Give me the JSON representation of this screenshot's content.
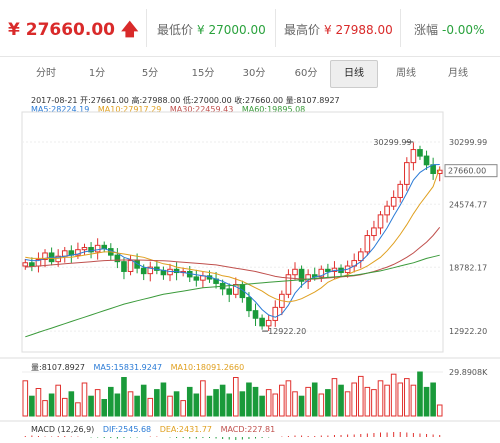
{
  "header": {
    "price": "¥ 27660.00",
    "low_label": "最低价",
    "low_value": "¥ 27000.00",
    "high_label": "最高价",
    "high_value": "¥ 27988.00",
    "change_label": "涨幅",
    "change_value": "-0.00%"
  },
  "tabs": [
    "分时",
    "1分",
    "5分",
    "15分",
    "30分",
    "60分",
    "日线",
    "周线",
    "月线"
  ],
  "active_tab": 6,
  "info": {
    "line1": "2017-08-21  开:27661.00  高:27988.00  低:27000.00  收:27660.00  量:8107.8927",
    "ma5": "MA5:28224.19",
    "ma10": "MA10:27917.29",
    "ma30": "MA30:22459.43",
    "ma60": "MA60:19895.08"
  },
  "volume_info": {
    "vol": "量:8107.8927",
    "ma5": "MA5:15831.9247",
    "ma10": "MA10:18091.2660"
  },
  "macd_info": {
    "title": "MACD (12,26,9)",
    "dif": "DIF:2545.68",
    "dea": "DEA:2431.77",
    "macd": "MACD:227.81"
  },
  "chart_data": {
    "type": "candlestick",
    "y_ticks": [
      30299.99,
      24574.77,
      18782.17,
      12922.2
    ],
    "current_label": 27660.0,
    "ylim": [
      11000,
      32500
    ],
    "annotations": [
      {
        "label": "30299.99",
        "value": 30299.99
      },
      {
        "label": "12922.20",
        "value": 12922.2
      }
    ],
    "closes": [
      19200,
      18900,
      19500,
      20100,
      19300,
      19800,
      20300,
      19900,
      20400,
      20600,
      20200,
      20800,
      20500,
      19900,
      19300,
      18400,
      19400,
      18700,
      18200,
      18800,
      18500,
      18100,
      18600,
      18300,
      18400,
      17900,
      17600,
      18000,
      17700,
      17300,
      16800,
      16300,
      17200,
      16000,
      14800,
      14100,
      13400,
      13900,
      15100,
      16300,
      18100,
      18600,
      17500,
      18100,
      17900,
      18600,
      18400,
      18700,
      18300,
      18900,
      19400,
      20200,
      21700,
      22400,
      23600,
      24400,
      25200,
      26400,
      28400,
      29600,
      29000,
      28200,
      27400,
      27700
    ],
    "ma5": [
      19500,
      19400,
      19400,
      19600,
      19700,
      19700,
      19800,
      19900,
      20000,
      20200,
      20300,
      20400,
      20500,
      20300,
      20100,
      19700,
      19500,
      19100,
      18800,
      18700,
      18600,
      18500,
      18400,
      18400,
      18300,
      18200,
      18100,
      18000,
      17900,
      17700,
      17500,
      17200,
      17000,
      16700,
      16200,
      15600,
      14900,
      14400,
      14200,
      14500,
      15300,
      16400,
      17100,
      17600,
      17900,
      18000,
      18300,
      18500,
      18500,
      18600,
      18900,
      19300,
      19900,
      20600,
      21500,
      22400,
      23500,
      24500,
      25600,
      26800,
      27500,
      27900,
      28200,
      28224
    ],
    "ma10": [
      19700,
      19600,
      19600,
      19600,
      19600,
      19600,
      19700,
      19700,
      19800,
      19900,
      20000,
      20100,
      20200,
      20200,
      20100,
      20000,
      19900,
      19800,
      19700,
      19500,
      19300,
      19100,
      19000,
      18800,
      18700,
      18600,
      18500,
      18400,
      18300,
      18200,
      18000,
      17900,
      17700,
      17500,
      17200,
      16900,
      16600,
      16200,
      15900,
      15700,
      15600,
      15700,
      15900,
      16200,
      16500,
      16900,
      17400,
      17700,
      17900,
      18100,
      18400,
      18600,
      18900,
      19300,
      19700,
      20300,
      21000,
      21800,
      22700,
      23700,
      24600,
      25400,
      26200,
      27917
    ],
    "ma30": [
      18800,
      18850,
      18900,
      18950,
      19000,
      19050,
      19100,
      19150,
      19200,
      19250,
      19300,
      19350,
      19400,
      19420,
      19440,
      19450,
      19460,
      19450,
      19440,
      19420,
      19400,
      19380,
      19350,
      19300,
      19250,
      19200,
      19150,
      19100,
      19050,
      19000,
      18900,
      18800,
      18700,
      18600,
      18500,
      18400,
      18250,
      18100,
      17950,
      17850,
      17800,
      17750,
      17700,
      17700,
      17700,
      17750,
      17800,
      17850,
      17900,
      17950,
      18000,
      18100,
      18250,
      18400,
      18600,
      18800,
      19050,
      19350,
      19700,
      20100,
      20600,
      21100,
      21700,
      22459
    ],
    "ma60": [
      12400,
      12600,
      12800,
      13000,
      13200,
      13400,
      13600,
      13800,
      14000,
      14200,
      14400,
      14600,
      14800,
      15000,
      15200,
      15400,
      15550,
      15700,
      15850,
      16000,
      16150,
      16300,
      16400,
      16500,
      16600,
      16700,
      16800,
      16900,
      16950,
      17000,
      17050,
      17100,
      17150,
      17200,
      17250,
      17300,
      17350,
      17400,
      17450,
      17500,
      17550,
      17600,
      17650,
      17700,
      17750,
      17800,
      17850,
      17900,
      17950,
      18000,
      18050,
      18150,
      18250,
      18350,
      18450,
      18600,
      18750,
      18900,
      19050,
      19200,
      19400,
      19600,
      19750,
      19895
    ],
    "volumes": [
      32,
      18,
      25,
      14,
      20,
      28,
      16,
      22,
      12,
      30,
      18,
      24,
      15,
      26,
      20,
      35,
      22,
      18,
      28,
      16,
      24,
      30,
      18,
      22,
      14,
      26,
      20,
      32,
      18,
      24,
      28,
      20,
      35,
      22,
      30,
      26,
      18,
      24,
      20,
      28,
      32,
      22,
      18,
      26,
      30,
      20,
      24,
      34,
      28,
      22,
      30,
      36,
      26,
      24,
      32,
      28,
      38,
      30,
      34,
      28,
      40,
      26,
      30,
      10
    ],
    "volume_max_label": "29.8908K",
    "macd_hist": [
      2,
      3,
      2,
      1,
      1,
      2,
      2,
      1,
      1,
      0,
      -1,
      -1,
      -2,
      -2,
      -3,
      -2,
      -1,
      -1,
      0,
      1,
      1,
      0,
      -1,
      -2,
      -2,
      -3,
      -3,
      -2,
      -2,
      -3,
      -4,
      -5,
      -6,
      -5,
      -4,
      -3,
      -2,
      -1,
      0,
      1,
      2,
      3,
      3,
      2,
      2,
      3,
      3,
      4,
      4,
      5,
      5,
      6,
      7,
      8,
      9,
      9,
      10,
      10,
      9,
      8,
      7,
      6,
      5,
      4
    ]
  }
}
